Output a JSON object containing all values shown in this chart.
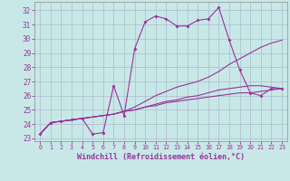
{
  "xlabel": "Windchill (Refroidissement éolien,°C)",
  "background_color": "#c8e8e8",
  "line_color": "#993399",
  "xlim": [
    -0.5,
    23.5
  ],
  "ylim": [
    22.8,
    32.6
  ],
  "yticks": [
    23,
    24,
    25,
    26,
    27,
    28,
    29,
    30,
    31,
    32
  ],
  "xticks": [
    0,
    1,
    2,
    3,
    4,
    5,
    6,
    7,
    8,
    9,
    10,
    11,
    12,
    13,
    14,
    15,
    16,
    17,
    18,
    19,
    20,
    21,
    22,
    23
  ],
  "grid_color": "#aabccc",
  "lines": [
    {
      "x": [
        0,
        1,
        2,
        3,
        4,
        5,
        6,
        7,
        8,
        9,
        10,
        11,
        12,
        13,
        14,
        15,
        16,
        17,
        18,
        19,
        20,
        21,
        22,
        23
      ],
      "y": [
        23.3,
        24.1,
        24.2,
        24.3,
        24.4,
        23.3,
        23.4,
        26.7,
        24.6,
        29.3,
        31.2,
        31.6,
        31.4,
        30.9,
        30.9,
        31.3,
        31.4,
        32.2,
        29.9,
        27.8,
        26.2,
        26.0,
        26.5,
        26.5
      ],
      "markers": true
    },
    {
      "x": [
        0,
        1,
        2,
        3,
        4,
        5,
        6,
        7,
        8,
        9,
        10,
        11,
        12,
        13,
        14,
        15,
        16,
        17,
        18,
        19,
        20,
        21,
        22,
        23
      ],
      "y": [
        23.3,
        24.1,
        24.2,
        24.3,
        24.4,
        24.5,
        24.6,
        24.7,
        24.9,
        25.2,
        25.6,
        26.0,
        26.3,
        26.6,
        26.8,
        27.0,
        27.3,
        27.7,
        28.2,
        28.6,
        29.0,
        29.4,
        29.7,
        29.9
      ],
      "markers": false
    },
    {
      "x": [
        0,
        1,
        2,
        3,
        4,
        5,
        6,
        7,
        8,
        9,
        10,
        11,
        12,
        13,
        14,
        15,
        16,
        17,
        18,
        19,
        20,
        21,
        22,
        23
      ],
      "y": [
        23.3,
        24.1,
        24.2,
        24.3,
        24.4,
        24.5,
        24.6,
        24.7,
        24.9,
        25.0,
        25.2,
        25.4,
        25.6,
        25.7,
        25.9,
        26.0,
        26.2,
        26.4,
        26.5,
        26.6,
        26.7,
        26.7,
        26.6,
        26.5
      ],
      "markers": false
    },
    {
      "x": [
        0,
        1,
        2,
        3,
        4,
        5,
        6,
        7,
        8,
        9,
        10,
        11,
        12,
        13,
        14,
        15,
        16,
        17,
        18,
        19,
        20,
        21,
        22,
        23
      ],
      "y": [
        23.3,
        24.1,
        24.2,
        24.3,
        24.4,
        24.5,
        24.6,
        24.7,
        24.9,
        25.0,
        25.2,
        25.3,
        25.5,
        25.6,
        25.7,
        25.8,
        25.9,
        26.0,
        26.1,
        26.2,
        26.2,
        26.3,
        26.4,
        26.5
      ],
      "markers": false
    }
  ]
}
